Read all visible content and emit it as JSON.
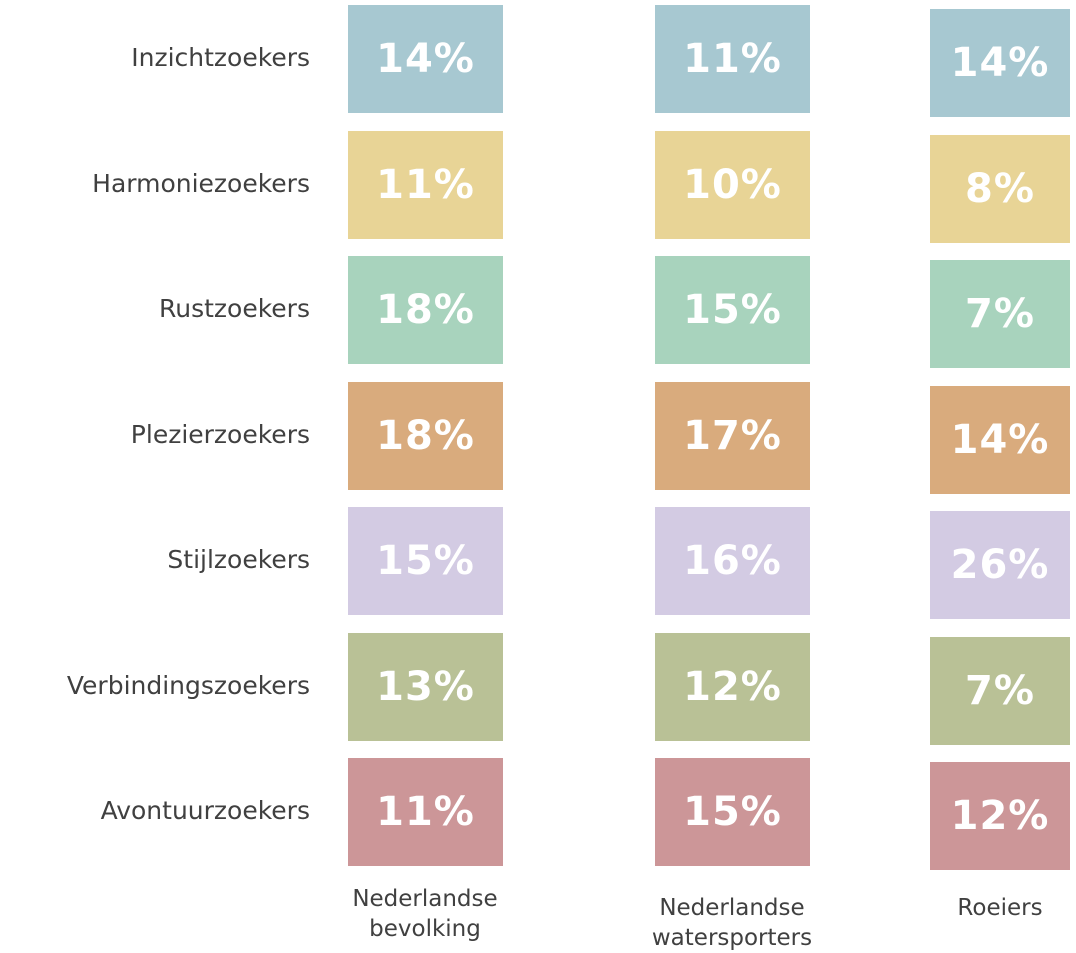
{
  "table": {
    "columns": [
      "Nederlandse bevolking",
      "Nederlandse watersporters",
      "Roeiers"
    ],
    "rows": [
      {
        "label": "Inzichtzoekers",
        "color": "#a7c8d1",
        "values": [
          "14%",
          "11%",
          "14%"
        ]
      },
      {
        "label": "Harmoniezoekers",
        "color": "#e8d496",
        "values": [
          "11%",
          "10%",
          "8%"
        ]
      },
      {
        "label": "Rustzoekers",
        "color": "#a8d3bd",
        "values": [
          "18%",
          "15%",
          "7%"
        ]
      },
      {
        "label": "Plezierzoekers",
        "color": "#d9ab7d",
        "values": [
          "18%",
          "17%",
          "14%"
        ]
      },
      {
        "label": "Stijlzoekers",
        "color": "#d3cbe3",
        "values": [
          "15%",
          "16%",
          "26%"
        ]
      },
      {
        "label": "Verbindingszoekers",
        "color": "#b9c196",
        "values": [
          "13%",
          "12%",
          "7%"
        ]
      },
      {
        "label": "Avontuurzoekers",
        "color": "#cc9698",
        "values": [
          "11%",
          "15%",
          "12%"
        ]
      }
    ]
  }
}
